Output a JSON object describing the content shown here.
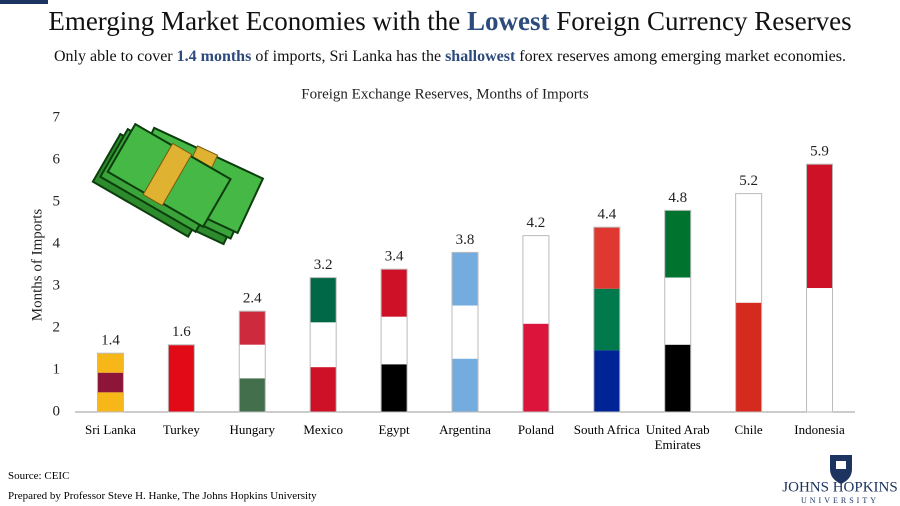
{
  "chart_data": {
    "type": "bar",
    "title": [
      "Emerging Market Economies with the ",
      "Lowest",
      " Foreign Currency Reserves"
    ],
    "subtitle": [
      "Only able to cover ",
      "1.4 months",
      " of imports, Sri Lanka has the ",
      "shallowest",
      " forex reserves among emerging market economies."
    ],
    "chart_title": "Foreign Exchange Reserves, Months of Imports",
    "y_label": "Months of Imports",
    "categories": [
      "Sri Lanka",
      "Turkey",
      "Hungary",
      "Mexico",
      "Egypt",
      "Argentina",
      "Poland",
      "South Africa",
      "United Arab Emirates",
      "Chile",
      "Indonesia"
    ],
    "values": [
      1.4,
      1.6,
      2.4,
      3.2,
      3.4,
      3.8,
      4.2,
      4.4,
      4.8,
      5.2,
      5.9
    ],
    "colors": [
      [
        "#f7b718",
        "#8d153a",
        "#f7b718"
      ],
      [
        "#e30a17"
      ],
      [
        "#cd2a3e",
        "#ffffff",
        "#436f4d"
      ],
      [
        "#006847",
        "#ffffff",
        "#ce1126"
      ],
      [
        "#ce1126",
        "#ffffff",
        "#000000"
      ],
      [
        "#74acdf",
        "#ffffff",
        "#74acdf"
      ],
      [
        "#ffffff",
        "#dc143c"
      ],
      [
        "#de3831",
        "#007a4d",
        "#002395"
      ],
      [
        "#00732f",
        "#ffffff",
        "#000000"
      ],
      [
        "#ffffff",
        "#d52b1e"
      ],
      [
        "#ce1126",
        "#ffffff"
      ]
    ],
    "ylim": [
      0,
      7
    ],
    "yticks": [
      0,
      1,
      2,
      3,
      4,
      5,
      6,
      7
    ],
    "grid": false,
    "source": "Source: CEIC",
    "credit": "Prepared by Professor Steve H. Hanke, The Johns Hopkins University",
    "logo": [
      "JOHNS HOPKINS",
      "UNIVERSITY"
    ]
  }
}
